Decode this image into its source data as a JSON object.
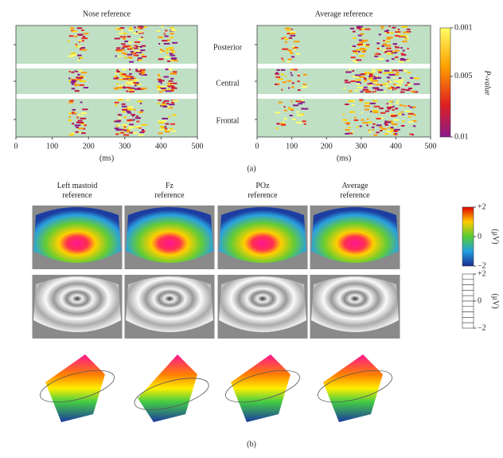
{
  "panel_a": {
    "label": "(a)",
    "plots": [
      {
        "title": "Nose reference",
        "xlabel": "(ms)",
        "xlim": [
          0,
          500
        ],
        "xticks": [
          0,
          100,
          200,
          300,
          400,
          500
        ]
      },
      {
        "title": "Average reference",
        "xlabel": "(ms)",
        "xlim": [
          0,
          500
        ],
        "xticks": [
          0,
          100,
          200,
          300,
          400,
          500
        ]
      }
    ],
    "rows": [
      "Posterior",
      "Central",
      "Frontal"
    ],
    "colorbar": {
      "label": "P-value",
      "lim": [
        0.001,
        0.01
      ],
      "ticks": [
        0.001,
        0.005,
        0.01
      ]
    }
  },
  "panel_b": {
    "label": "(b)",
    "columns": [
      "Left mastoid reference",
      "Fz reference",
      "POz reference",
      "Average reference"
    ],
    "colorbar": {
      "unit": "(μV)",
      "lim": [
        -2,
        2
      ],
      "ticks": [
        {
          "value": 2,
          "label": "+2"
        },
        0,
        {
          "value": -2,
          "label": "−2"
        }
      ]
    }
  }
}
